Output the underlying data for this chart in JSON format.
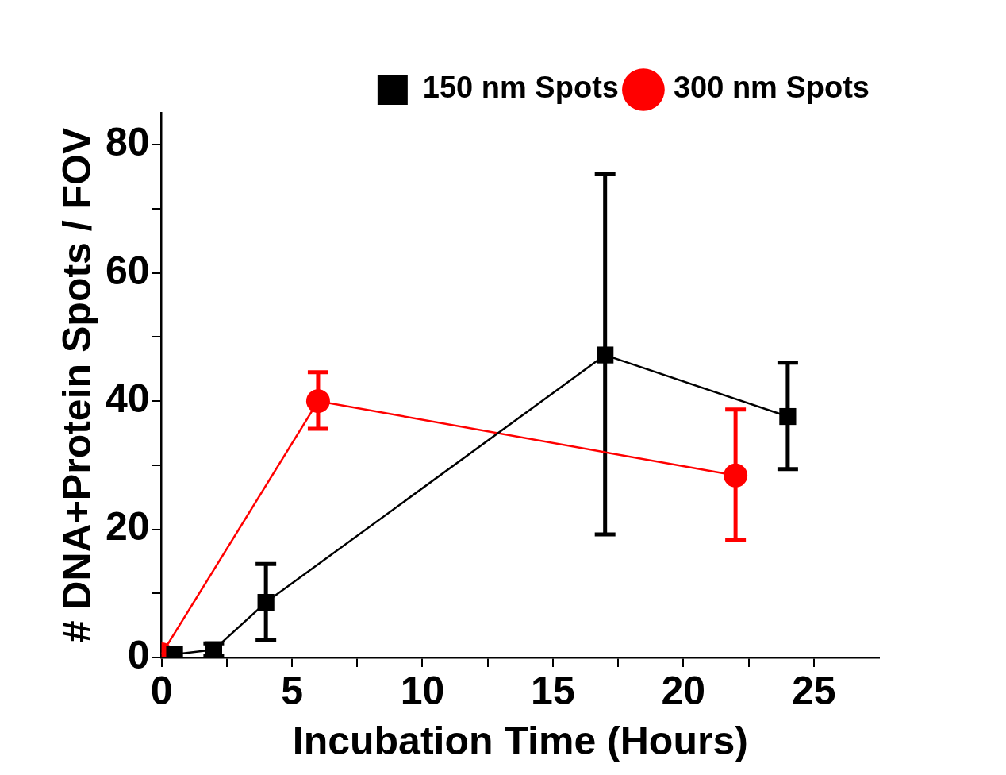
{
  "chart_data": {
    "type": "line",
    "xlabel": "Incubation Time (Hours)",
    "ylabel": "# DNA+Protein Spots / FOV",
    "xlim": [
      0,
      27.5
    ],
    "xticks": [
      0,
      {
        "value": 2.5,
        "label": null
      },
      5,
      {
        "value": 7.5,
        "label": null
      },
      10,
      {
        "value": 12.5,
        "label": null
      },
      15,
      {
        "value": 17.5,
        "label": null
      },
      20,
      {
        "value": 22.5,
        "label": null
      },
      25
    ],
    "ylim": [
      0,
      85
    ],
    "yticks": [
      0,
      {
        "value": 10,
        "label": null
      },
      20,
      {
        "value": 30,
        "label": null
      },
      40,
      {
        "value": 50,
        "label": null
      },
      60,
      {
        "value": 70,
        "label": null
      },
      80
    ],
    "grid": false,
    "legend": "top right",
    "line_style": "solid",
    "series": [
      {
        "name": "150 nm Spots",
        "color": "#000000",
        "marker": "square",
        "x": [
          0.5,
          2,
          4,
          17,
          24
        ],
        "values": [
          0.5,
          1.2,
          8.6,
          47.2,
          37.6
        ],
        "errors": [
          null,
          [
            0.2,
            2.2
          ],
          [
            2.7,
            14.6
          ],
          [
            19.2,
            75.4
          ],
          [
            29.4,
            46.0
          ]
        ]
      },
      {
        "name": "300 nm Spots",
        "color": "#ff0000",
        "marker": "circle",
        "x": [
          0,
          6,
          22
        ],
        "values": [
          0.5,
          40.0,
          28.4
        ],
        "errors": [
          null,
          [
            35.7,
            44.5
          ],
          [
            18.4,
            38.7
          ]
        ]
      }
    ]
  }
}
